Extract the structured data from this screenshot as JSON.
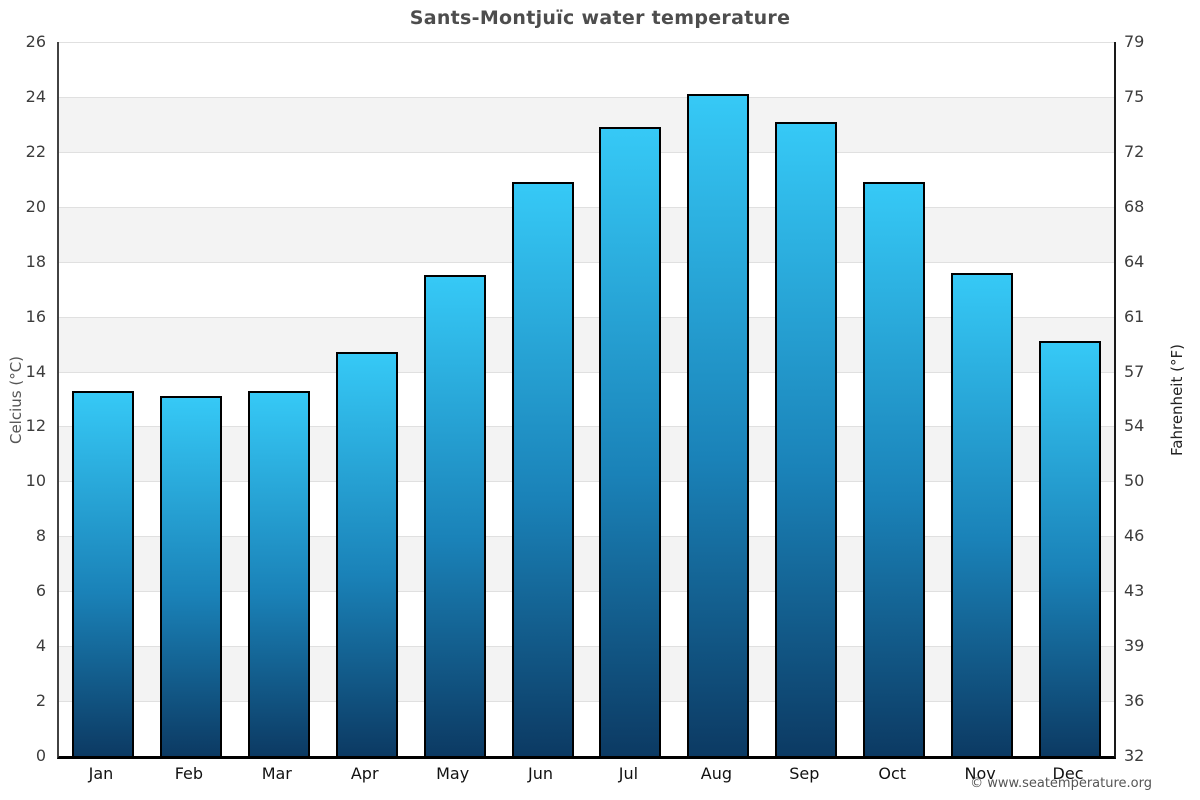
{
  "chart_data": {
    "type": "bar",
    "title": "Sants-Montjuïc water temperature",
    "categories": [
      "Jan",
      "Feb",
      "Mar",
      "Apr",
      "May",
      "Jun",
      "Jul",
      "Aug",
      "Sep",
      "Oct",
      "Nov",
      "Dec"
    ],
    "values": [
      13.3,
      13.1,
      13.3,
      14.7,
      17.5,
      20.9,
      22.9,
      24.1,
      23.1,
      20.9,
      17.6,
      15.1
    ],
    "unit": "°C",
    "ylabel_left": "Celcius (°C)",
    "ylabel_right": "Fahrenheit (°F)",
    "ylim": [
      0,
      26
    ],
    "yticks": [
      {
        "c": "0",
        "f": "32"
      },
      {
        "c": "2",
        "f": "36"
      },
      {
        "c": "4",
        "f": "39"
      },
      {
        "c": "6",
        "f": "43"
      },
      {
        "c": "8",
        "f": "46"
      },
      {
        "c": "10",
        "f": "50"
      },
      {
        "c": "12",
        "f": "54"
      },
      {
        "c": "14",
        "f": "57"
      },
      {
        "c": "16",
        "f": "61"
      },
      {
        "c": "18",
        "f": "64"
      },
      {
        "c": "20",
        "f": "68"
      },
      {
        "c": "22",
        "f": "72"
      },
      {
        "c": "24",
        "f": "75"
      },
      {
        "c": "26",
        "f": "79"
      }
    ],
    "grid": "horizontal alternating bands every 2°C",
    "legend": "none",
    "colors": {
      "bar_gradient_top": "#36c9f6",
      "bar_gradient_bottom": "#0c3a63",
      "bar_border": "#000000",
      "band_gray": "#f3f3f3",
      "gridline": "#e0e0e0",
      "title_text": "#4d4d4d"
    },
    "footer": "© www.seatemperature.org"
  }
}
